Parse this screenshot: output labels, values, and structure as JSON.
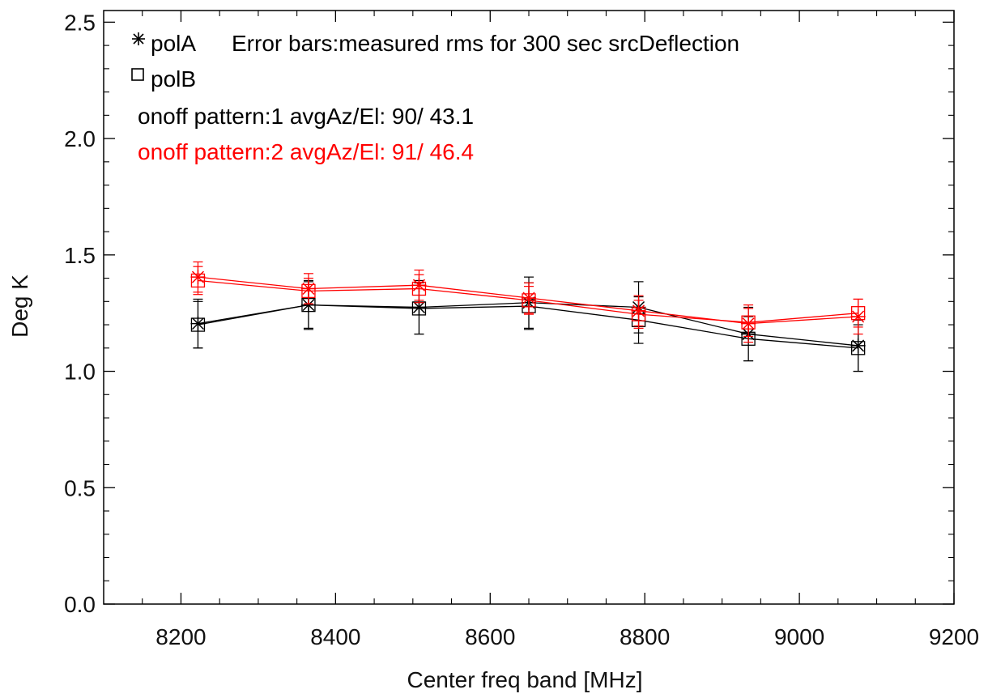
{
  "chart_data": {
    "type": "scatter",
    "xlabel": "Center freq band [MHz]",
    "ylabel": "Deg K",
    "xlim": [
      8100,
      9200
    ],
    "ylim": [
      0.0,
      2.55
    ],
    "x_ticks": [
      "8200",
      "8400",
      "8600",
      "8800",
      "9000",
      "9200"
    ],
    "y_ticks": [
      "0.0",
      "0.5",
      "1.0",
      "1.5",
      "2.0",
      "2.5"
    ],
    "x_tick_values": [
      8200,
      8400,
      8600,
      8800,
      9000,
      9200
    ],
    "y_tick_values": [
      0.0,
      0.5,
      1.0,
      1.5,
      2.0,
      2.5
    ],
    "legend": {
      "polA": "polA",
      "polA_note": "Error bars:measured rms for 300 sec srcDeflection",
      "polB": "polB",
      "pattern1": "onoff pattern:1 avgAz/El:  90/ 43.1",
      "pattern2": "onoff pattern:2 avgAz/El:  91/ 46.4",
      "pattern1_color": "#000000",
      "pattern2_color": "#ff0000"
    },
    "x": [
      8222,
      8365,
      8508,
      8650,
      8792,
      8934,
      9076
    ],
    "series": [
      {
        "pattern": 1,
        "pol": "polA",
        "marker": "asterisk",
        "color": "#000000",
        "values": [
          1.205,
          1.285,
          1.275,
          1.295,
          1.275,
          1.16,
          1.11
        ],
        "err": [
          0.105,
          0.105,
          0.115,
          0.11,
          0.11,
          0.115,
          0.11
        ]
      },
      {
        "pattern": 1,
        "pol": "polB",
        "marker": "square",
        "color": "#000000",
        "values": [
          1.2,
          1.285,
          1.27,
          1.28,
          1.22,
          1.14,
          1.1
        ],
        "err": [
          0.1,
          0.1,
          0.11,
          0.1,
          0.1,
          0.095,
          0.1
        ]
      },
      {
        "pattern": 2,
        "pol": "polA",
        "marker": "asterisk",
        "color": "#ff0000",
        "values": [
          1.405,
          1.355,
          1.37,
          1.315,
          1.26,
          1.205,
          1.235
        ],
        "err": [
          0.065,
          0.065,
          0.065,
          0.065,
          0.065,
          0.08,
          0.075
        ]
      },
      {
        "pattern": 2,
        "pol": "polB",
        "marker": "square",
        "color": "#ff0000",
        "values": [
          1.39,
          1.345,
          1.355,
          1.305,
          1.245,
          1.21,
          1.25
        ],
        "err": [
          0.06,
          0.055,
          0.06,
          0.06,
          0.06,
          0.06,
          0.06
        ]
      }
    ]
  }
}
